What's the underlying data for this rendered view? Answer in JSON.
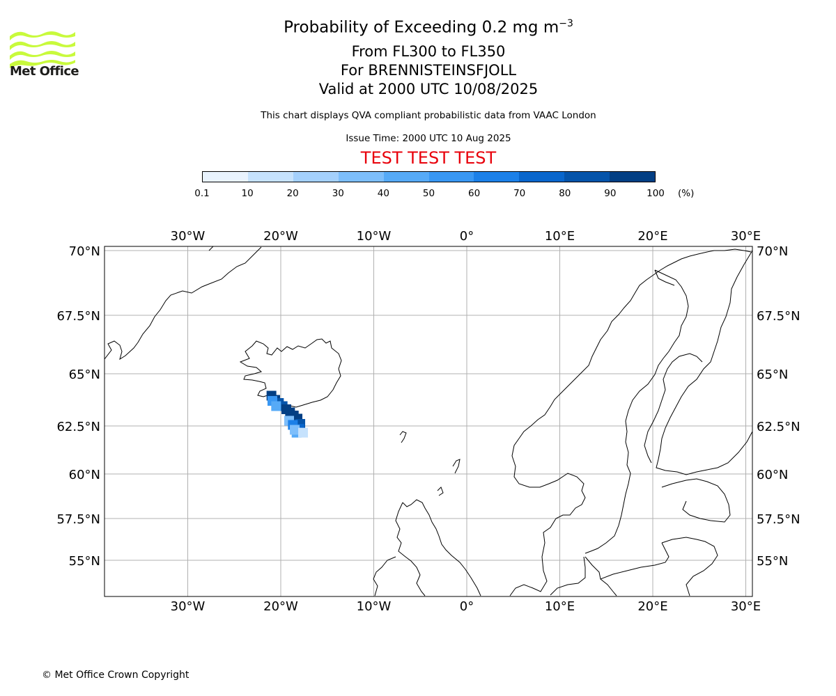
{
  "title": {
    "main": "Probability of Exceeding 0.2 mg m",
    "main_sup": "−3",
    "line2": "From FL300 to FL350",
    "line3": "For BRENNISTEINSFJOLL",
    "line4": "Valid at 2000 UTC 10/08/2025"
  },
  "disclaimer": "This chart displays QVA compliant probabilistic data from VAAC London",
  "issue_time": "Issue Time: 2000 UTC 10 Aug 2025",
  "test_banner": "TEST TEST TEST",
  "logo": {
    "text": "Met Office",
    "icon": "met-office-wave-logo",
    "color": "#c8fa3c"
  },
  "colorbar": {
    "ticks": [
      "0.1",
      "10",
      "20",
      "30",
      "40",
      "50",
      "60",
      "70",
      "80",
      "90",
      "100"
    ],
    "unit": "(%)",
    "colors": [
      "#e9f3fe",
      "#c6e2fd",
      "#a4d0fc",
      "#7dbefb",
      "#56aaf7",
      "#3997f3",
      "#1c80e8",
      "#0966cc",
      "#0554aa",
      "#033f84",
      "#022a5e"
    ]
  },
  "map": {
    "lon_labels": [
      "30°W",
      "20°W",
      "10°W",
      "0°",
      "10°E",
      "20°E",
      "30°E"
    ],
    "lat_labels": [
      "70°N",
      "67.5°N",
      "65°N",
      "62.5°N",
      "60°N",
      "57.5°N",
      "55°N"
    ],
    "plume": [
      {
        "lon": -21.0,
        "lat": 63.95,
        "p": 95
      },
      {
        "lon": -20.6,
        "lat": 63.75,
        "p": 90
      },
      {
        "lon": -20.2,
        "lat": 63.6,
        "p": 85
      },
      {
        "lon": -19.8,
        "lat": 63.45,
        "p": 80
      },
      {
        "lon": -19.4,
        "lat": 63.3,
        "p": 90
      },
      {
        "lon": -19.0,
        "lat": 63.15,
        "p": 95
      },
      {
        "lon": -18.6,
        "lat": 63.0,
        "p": 95
      },
      {
        "lon": -18.2,
        "lat": 62.85,
        "p": 92
      },
      {
        "lon": -17.9,
        "lat": 62.6,
        "p": 85
      },
      {
        "lon": -18.0,
        "lat": 62.35,
        "p": 70
      },
      {
        "lon": -18.3,
        "lat": 62.15,
        "p": 40
      },
      {
        "lon": -20.9,
        "lat": 63.7,
        "p": 55
      },
      {
        "lon": -20.5,
        "lat": 63.45,
        "p": 45
      },
      {
        "lon": -19.1,
        "lat": 62.75,
        "p": 35
      },
      {
        "lon": -18.7,
        "lat": 62.55,
        "p": 60
      },
      {
        "lon": -18.5,
        "lat": 62.3,
        "p": 30
      },
      {
        "lon": -17.6,
        "lat": 62.15,
        "p": 15
      }
    ]
  },
  "copyright": "© Met Office Crown Copyright"
}
